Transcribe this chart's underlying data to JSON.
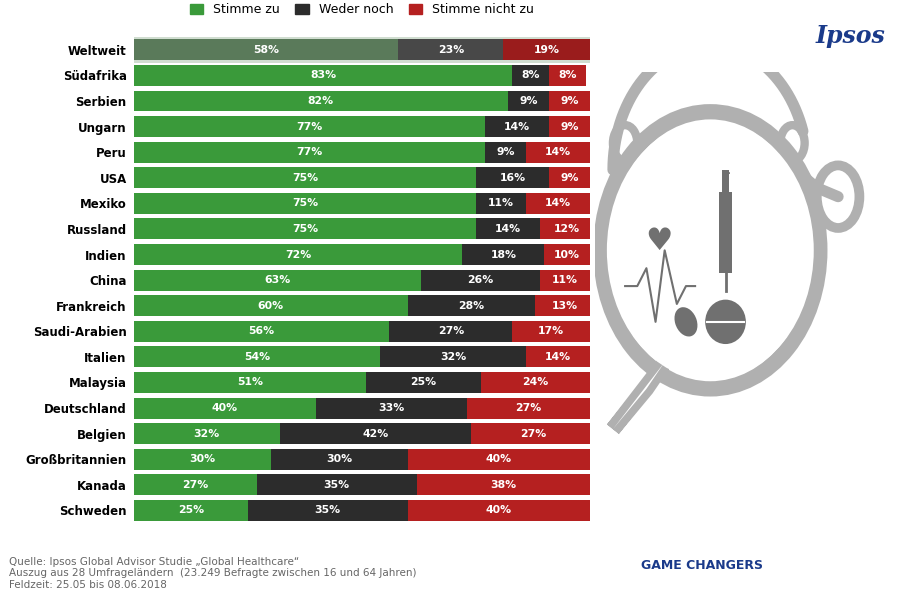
{
  "countries": [
    "Weltweit",
    "Südafrika",
    "Serbien",
    "Ungarn",
    "Peru",
    "USA",
    "Mexiko",
    "Russland",
    "Indien",
    "China",
    "Frankreich",
    "Saudi-Arabien",
    "Italien",
    "Malaysia",
    "Deutschland",
    "Belgien",
    "Großbritannien",
    "Kanada",
    "Schweden"
  ],
  "stimme_zu": [
    58,
    83,
    82,
    77,
    77,
    75,
    75,
    75,
    72,
    63,
    60,
    56,
    54,
    51,
    40,
    32,
    30,
    27,
    25
  ],
  "weder_noch": [
    23,
    8,
    9,
    14,
    9,
    16,
    11,
    14,
    18,
    26,
    28,
    27,
    32,
    25,
    33,
    42,
    30,
    35,
    35
  ],
  "stimme_nicht": [
    19,
    8,
    9,
    9,
    14,
    9,
    14,
    12,
    10,
    11,
    13,
    17,
    14,
    24,
    27,
    27,
    40,
    38,
    40
  ],
  "color_green": "#3a9a3a",
  "color_dark": "#2c2c2c",
  "color_red": "#b52020",
  "color_weltweit_green": "#5a7a5a",
  "color_weltweit_dark": "#484848",
  "color_weltweit_red": "#9a1c1c",
  "bar_height": 0.82,
  "legend_labels": [
    "Stimme zu",
    "Weder noch",
    "Stimme nicht zu"
  ],
  "source_text": "Quelle: Ipsos Global Advisor Studie „Global Healthcare“\nAuszug aus 28 Umfrageländern  (23.249 Befragte zwischen 16 und 64 Jahren)\nFeldzeit: 25.05 bis 08.06.2018",
  "ipsos_title": "Ipsos",
  "ipsos_title_color": "#1a3a8a",
  "game_changers_text": "GAME CHANGERS",
  "game_changers_color": "#1a3a8a",
  "background_color": "#ffffff",
  "weltweit_bg": "#d0ddd0",
  "icon_color": "#b0b0b0",
  "icon_dark": "#707070"
}
